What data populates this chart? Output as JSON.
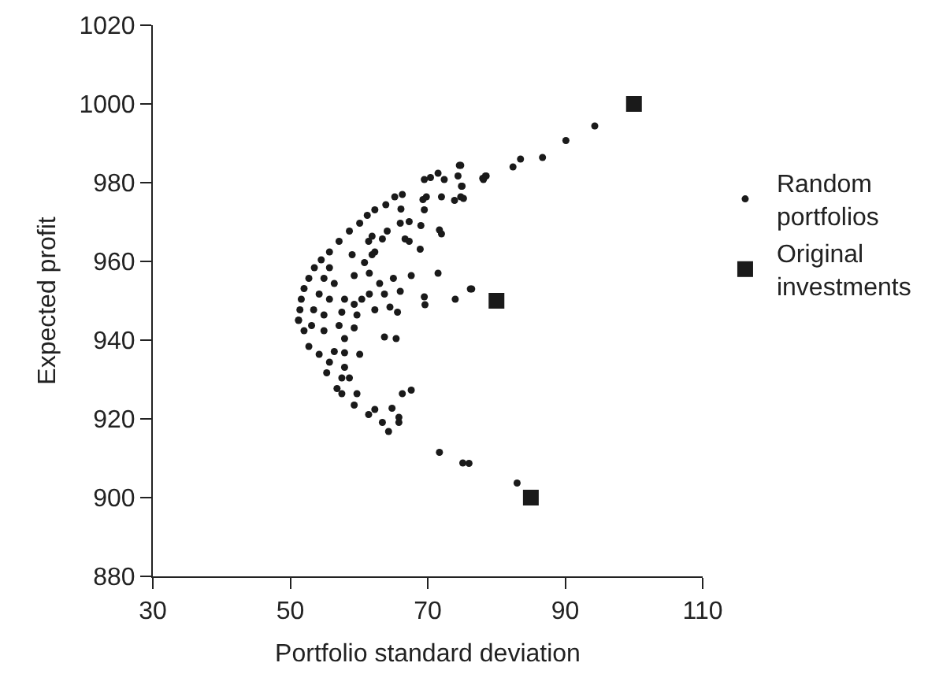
{
  "chart_data": {
    "type": "scatter",
    "xlabel": "Portfolio standard deviation",
    "ylabel": "Expected profit",
    "xlim": [
      30,
      110
    ],
    "xticks": [
      30,
      50,
      70,
      90,
      110
    ],
    "ylim": [
      880,
      1020
    ],
    "yticks": [
      880,
      900,
      920,
      940,
      960,
      980,
      1000,
      1020
    ],
    "grid": false,
    "legend": "right",
    "series": [
      {
        "name": "Random\nportfolios",
        "color": "#1a1a1a",
        "marker": "circle",
        "x": [
          74.6,
          74.4,
          72.4,
          71.5,
          70.4,
          69.5,
          78.4,
          78.1,
          74.9,
          74.8,
          73.9,
          72,
          69.8,
          69.3,
          69.5,
          66.3,
          66.1,
          63.9,
          67.3,
          66,
          69,
          71.7,
          72,
          64.1,
          63.4,
          61.9,
          61.4,
          66.7,
          67.3,
          68.9,
          62.3,
          61.9,
          59,
          60.8,
          71.5,
          67.6,
          65,
          61.5,
          59.3,
          63,
          66,
          63.7,
          61.5,
          60.4,
          59.3,
          57.9,
          57.5,
          59.7,
          62.3,
          64.5,
          65.6,
          69.5,
          69.6,
          74,
          76.2,
          65.2,
          62.3,
          61.2,
          60.1,
          58.6,
          57.1,
          55.7,
          54.5,
          53.5,
          52.7,
          52,
          51.6,
          51.4,
          51.2,
          55.7,
          54.9,
          56.4,
          54.2,
          55.7,
          53.4,
          54.9,
          51.2,
          52,
          53.1,
          54.9,
          57.1,
          59.3,
          57.9,
          52.7,
          54.2,
          56.4,
          57.9,
          60.1,
          55.7,
          57.9,
          55.3,
          57.5,
          58.6,
          56.8,
          57.5,
          59.7,
          59.3,
          61.4,
          62.3,
          63.4,
          64.8,
          65.8,
          65.8,
          64.3,
          63.7,
          65.4,
          66.3,
          67.6,
          71.7,
          75.1,
          76,
          94.3,
          90.1,
          86.7,
          83.5,
          82.4,
          78.5,
          78,
          74.8,
          75,
          75.2,
          76.4,
          83
        ],
        "values": [
          984.4,
          981.7,
          980.8,
          982.4,
          981.3,
          980.8,
          981.7,
          980.8,
          979.1,
          976.4,
          975.5,
          976.4,
          976.4,
          975.7,
          973.1,
          977,
          973.3,
          974.4,
          970.1,
          969.7,
          969.1,
          968,
          967,
          967.7,
          965.7,
          966.4,
          965.1,
          965.7,
          965.1,
          963.1,
          962.4,
          961.7,
          961.7,
          959.7,
          957,
          956.4,
          955.7,
          957,
          956.4,
          954.4,
          952.4,
          951.7,
          951.7,
          950.4,
          949.1,
          950.4,
          947.1,
          946.4,
          947.7,
          948.4,
          947.1,
          951,
          949,
          950.4,
          953,
          976.4,
          973.1,
          971.7,
          969.7,
          967.7,
          965.1,
          962.4,
          960.4,
          958.4,
          955.7,
          953.1,
          950.4,
          947.7,
          945,
          958.4,
          955.7,
          954.4,
          951.7,
          950.4,
          947.7,
          946.4,
          945.1,
          942.4,
          943.7,
          942.4,
          943.7,
          943.1,
          940.4,
          938.4,
          936.4,
          937.1,
          936.8,
          936.4,
          934.4,
          933.1,
          931.7,
          930.4,
          930.4,
          927.7,
          926.4,
          926.4,
          923.5,
          921.1,
          922.4,
          919.1,
          922.7,
          920.4,
          919.1,
          916.8,
          940.8,
          940.4,
          926.4,
          927.3,
          911.5,
          908.8,
          908.7,
          994.4,
          990.7,
          986.4,
          986,
          984,
          981.7,
          981.1,
          984.4,
          979.1,
          976,
          953,
          903.7
        ]
      },
      {
        "name": "Original\ninvestments",
        "color": "#1a1a1a",
        "marker": "square",
        "x": [
          100,
          80,
          85
        ],
        "values": [
          1000,
          950,
          900
        ]
      }
    ]
  }
}
